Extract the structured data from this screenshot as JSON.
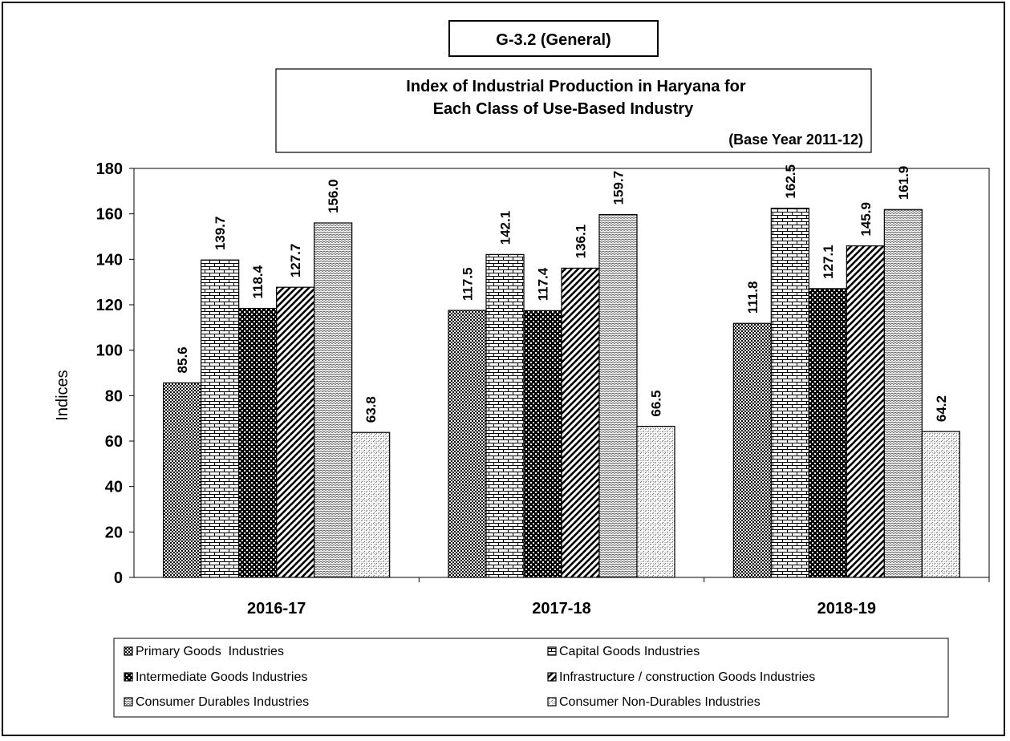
{
  "chart_data": {
    "type": "bar",
    "figure_label": "G-3.2 (General)",
    "title_line1": "Index of Industrial Production in Haryana for",
    "title_line2": "Each Class of Use-Based Industry",
    "subtitle": "(Base Year 2011-12)",
    "ylabel": "Indices",
    "xlabel": "",
    "ylim": [
      0,
      180
    ],
    "yticks": [
      0,
      20,
      40,
      60,
      80,
      100,
      120,
      140,
      160,
      180
    ],
    "grid": false,
    "legend_position": "bottom",
    "categories": [
      "2016-17",
      "2017-18",
      "2018-19"
    ],
    "series": [
      {
        "name": "Primary Goods  Industries",
        "values": [
          85.6,
          117.5,
          111.8
        ],
        "labels": [
          "85.6",
          "117.5",
          "111.8"
        ],
        "pattern": "checker"
      },
      {
        "name": "Capital Goods Industries",
        "values": [
          139.7,
          142.1,
          162.5
        ],
        "labels": [
          "139.7",
          "142.1",
          "162.5"
        ],
        "pattern": "brick"
      },
      {
        "name": "Intermediate Goods Industries",
        "values": [
          118.4,
          117.4,
          127.1
        ],
        "labels": [
          "118.4",
          "117.4",
          "127.1"
        ],
        "pattern": "dense-checker"
      },
      {
        "name": "Infrastructure / construction Goods Industries",
        "values": [
          127.7,
          136.1,
          145.9
        ],
        "labels": [
          "127.7",
          "136.1",
          "145.9"
        ],
        "pattern": "diagonal"
      },
      {
        "name": "Consumer Durables Industries",
        "values": [
          156.0,
          159.7,
          161.9
        ],
        "labels": [
          "156.0",
          "159.7",
          "161.9"
        ],
        "pattern": "zigzag"
      },
      {
        "name": "Consumer Non-Durables Industries",
        "values": [
          63.8,
          66.5,
          64.2
        ],
        "labels": [
          "63.8",
          "66.5",
          "64.2"
        ],
        "pattern": "dots"
      }
    ]
  }
}
